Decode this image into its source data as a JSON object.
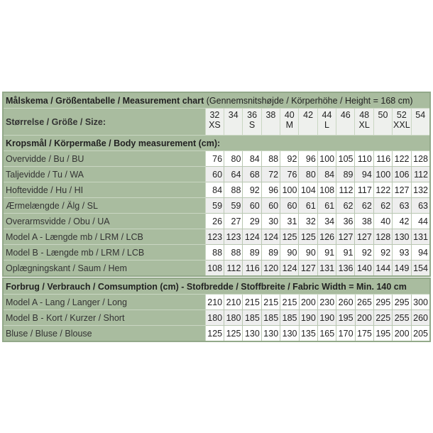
{
  "measurement": {
    "title_bold": "Målskema / Größentabelle / Measurement chart",
    "title_note": "(Gennemsnitshøjde / Körperhöhe / Height = 168 cm)",
    "size_label": "Størrelse / Größe / Size:",
    "sizes": [
      {
        "num": "32",
        "letter": "XS"
      },
      {
        "num": "34",
        "letter": ""
      },
      {
        "num": "36",
        "letter": "S"
      },
      {
        "num": "38",
        "letter": ""
      },
      {
        "num": "40",
        "letter": "M"
      },
      {
        "num": "42",
        "letter": ""
      },
      {
        "num": "44",
        "letter": "L"
      },
      {
        "num": "46",
        "letter": ""
      },
      {
        "num": "48",
        "letter": "XL"
      },
      {
        "num": "50",
        "letter": ""
      },
      {
        "num": "52",
        "letter": "XXL"
      },
      {
        "num": "54",
        "letter": ""
      }
    ],
    "body_header": "Kropsmål / Körpermaße / Body measurement (cm):",
    "rows": [
      {
        "label": "Overvidde / Bu / BU",
        "values": [
          "76",
          "80",
          "84",
          "88",
          "92",
          "96",
          "100",
          "105",
          "110",
          "116",
          "122",
          "128"
        ]
      },
      {
        "label": "Taljevidde / Tu / WA",
        "values": [
          "60",
          "64",
          "68",
          "72",
          "76",
          "80",
          "84",
          "89",
          "94",
          "100",
          "106",
          "112"
        ]
      },
      {
        "label": "Hoftevidde / Hu / HI",
        "values": [
          "84",
          "88",
          "92",
          "96",
          "100",
          "104",
          "108",
          "112",
          "117",
          "122",
          "127",
          "132"
        ]
      },
      {
        "label": "Ærmelængde / Älg / SL",
        "values": [
          "59",
          "59",
          "60",
          "60",
          "60",
          "61",
          "61",
          "62",
          "62",
          "62",
          "63",
          "63"
        ]
      },
      {
        "label": "Overarmsvidde / Obu / UA",
        "values": [
          "26",
          "27",
          "29",
          "30",
          "31",
          "32",
          "34",
          "36",
          "38",
          "40",
          "42",
          "44"
        ]
      },
      {
        "label": "Model A - Længde mb / LRM / LCB",
        "values": [
          "123",
          "123",
          "124",
          "124",
          "125",
          "125",
          "126",
          "127",
          "127",
          "128",
          "130",
          "131"
        ]
      },
      {
        "label": "Model B - Længde mb / LRM / LCB",
        "values": [
          "88",
          "88",
          "89",
          "89",
          "90",
          "90",
          "91",
          "91",
          "92",
          "92",
          "93",
          "94"
        ]
      },
      {
        "label": "Oplægningskant / Saum / Hem",
        "values": [
          "108",
          "112",
          "116",
          "120",
          "124",
          "127",
          "131",
          "136",
          "140",
          "144",
          "149",
          "154"
        ]
      }
    ]
  },
  "consumption": {
    "title": "Forbrug / Verbrauch / Comsumption (cm) - Stofbredde / Stoffbreite / Fabric Width = Min. 140 cm",
    "rows": [
      {
        "label": "Model A - Lang / Langer / Long",
        "values": [
          "210",
          "210",
          "215",
          "215",
          "215",
          "200",
          "230",
          "260",
          "265",
          "295",
          "295",
          "300"
        ]
      },
      {
        "label": "Model B - Kort / Kurzer / Short",
        "values": [
          "180",
          "180",
          "185",
          "185",
          "185",
          "190",
          "190",
          "195",
          "200",
          "225",
          "255",
          "260"
        ]
      },
      {
        "label": "Bluse / Bluse / Blouse",
        "values": [
          "125",
          "125",
          "130",
          "130",
          "130",
          "135",
          "165",
          "170",
          "175",
          "195",
          "200",
          "205"
        ]
      }
    ]
  }
}
